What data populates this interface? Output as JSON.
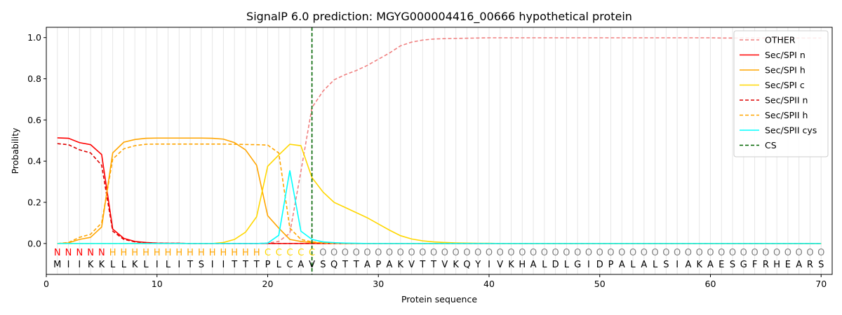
{
  "chart_data": {
    "type": "line",
    "title": "SignalP 6.0 prediction: MGYG000004416_00666 hypothetical protein",
    "xlabel": "Protein sequence",
    "ylabel": "Probability",
    "xlim": [
      0,
      71
    ],
    "ylim": [
      -0.15,
      1.05
    ],
    "x_ticks": [
      0,
      10,
      20,
      30,
      40,
      50,
      60,
      70
    ],
    "y_ticks": [
      0.0,
      0.2,
      0.4,
      0.6,
      0.8,
      1.0
    ],
    "y_tick_labels": [
      "0.0",
      "0.2",
      "0.4",
      "0.6",
      "0.8",
      "1.0"
    ],
    "legend_position": "top-right",
    "sequence": [
      "M",
      "I",
      "I",
      "K",
      "K",
      "L",
      "L",
      "K",
      "L",
      "I",
      "L",
      "I",
      "T",
      "S",
      "I",
      "I",
      "T",
      "T",
      "T",
      "P",
      "L",
      "C",
      "A",
      "V",
      "S",
      "Q",
      "T",
      "T",
      "A",
      "P",
      "A",
      "K",
      "V",
      "T",
      "T",
      "V",
      "K",
      "Q",
      "Y",
      "I",
      "V",
      "K",
      "H",
      "A",
      "L",
      "D",
      "L",
      "G",
      "I",
      "D",
      "P",
      "A",
      "L",
      "A",
      "L",
      "S",
      "I",
      "A",
      "K",
      "A",
      "E",
      "S",
      "G",
      "F",
      "R",
      "H",
      "E",
      "A",
      "R",
      "S"
    ],
    "region_labels": [
      "N",
      "N",
      "N",
      "N",
      "N",
      "H",
      "H",
      "H",
      "H",
      "H",
      "H",
      "H",
      "H",
      "H",
      "H",
      "H",
      "H",
      "H",
      "H",
      "C",
      "C",
      "C",
      "C",
      "C",
      "O",
      "O",
      "O",
      "O",
      "O",
      "O",
      "O",
      "O",
      "O",
      "O",
      "O",
      "O",
      "O",
      "O",
      "O",
      "O",
      "O",
      "O",
      "O",
      "O",
      "O",
      "O",
      "O",
      "O",
      "O",
      "O",
      "O",
      "O",
      "O",
      "O",
      "O",
      "O",
      "O",
      "O",
      "O",
      "O",
      "O",
      "O",
      "O",
      "O",
      "O",
      "O",
      "O",
      "O",
      "O",
      "O"
    ],
    "region_colors": {
      "N": "#ff0000",
      "H": "#ffa500",
      "C": "#ffd700",
      "O": "#808080"
    },
    "cs_position": 24,
    "series": [
      {
        "name": "OTHER",
        "color": "#f08080",
        "dash": "dashed",
        "values": [
          0,
          0,
          0,
          0,
          0,
          0,
          0,
          0,
          0,
          0,
          0,
          0,
          0,
          0,
          0,
          0,
          0,
          0,
          0,
          0.002,
          0.01,
          0.05,
          0.35,
          0.66,
          0.74,
          0.795,
          0.82,
          0.84,
          0.865,
          0.895,
          0.925,
          0.96,
          0.978,
          0.988,
          0.993,
          0.995,
          0.996,
          0.997,
          0.998,
          0.999,
          0.999,
          0.999,
          0.999,
          0.999,
          0.999,
          0.999,
          0.999,
          0.999,
          0.999,
          0.999,
          0.999,
          0.999,
          0.999,
          0.999,
          0.999,
          0.999,
          0.999,
          0.999,
          0.999,
          0.999,
          0.998,
          0.998,
          0.998,
          0.998,
          0.998,
          0.998,
          0.998,
          0.998,
          0.998,
          0.998
        ]
      },
      {
        "name": "Sec/SPI n",
        "color": "#ff0000",
        "dash": "solid",
        "values": [
          0.513,
          0.511,
          0.49,
          0.48,
          0.432,
          0.07,
          0.025,
          0.01,
          0.005,
          0.002,
          0.001,
          0.001,
          0,
          0,
          0,
          0,
          0,
          0,
          0,
          0,
          0,
          0,
          0,
          0,
          0,
          0,
          0,
          0,
          0,
          0,
          0,
          0,
          0,
          0,
          0,
          0,
          0,
          0,
          0,
          0,
          0,
          0,
          0,
          0,
          0,
          0,
          0,
          0,
          0,
          0,
          0,
          0,
          0,
          0,
          0,
          0,
          0,
          0,
          0,
          0,
          0,
          0,
          0,
          0,
          0,
          0,
          0,
          0,
          0,
          0
        ]
      },
      {
        "name": "Sec/SPI h",
        "color": "#ffa500",
        "dash": "solid",
        "values": [
          0,
          0.003,
          0.02,
          0.03,
          0.08,
          0.44,
          0.492,
          0.505,
          0.511,
          0.512,
          0.512,
          0.512,
          0.512,
          0.512,
          0.511,
          0.507,
          0.49,
          0.455,
          0.38,
          0.135,
          0.075,
          0.02,
          0.01,
          0.005,
          0.002,
          0.001,
          0,
          0,
          0,
          0,
          0,
          0,
          0,
          0,
          0,
          0,
          0,
          0,
          0,
          0,
          0,
          0,
          0,
          0,
          0,
          0,
          0,
          0,
          0,
          0,
          0,
          0,
          0,
          0,
          0,
          0,
          0,
          0,
          0,
          0,
          0,
          0,
          0,
          0,
          0,
          0,
          0,
          0,
          0,
          0
        ]
      },
      {
        "name": "Sec/SPI c",
        "color": "#ffd700",
        "dash": "solid",
        "values": [
          0,
          0,
          0,
          0,
          0,
          0,
          0,
          0,
          0,
          0,
          0,
          0,
          0,
          0,
          0,
          0.005,
          0.02,
          0.055,
          0.13,
          0.375,
          0.43,
          0.482,
          0.475,
          0.32,
          0.25,
          0.2,
          0.175,
          0.15,
          0.125,
          0.095,
          0.065,
          0.038,
          0.022,
          0.013,
          0.008,
          0.005,
          0.003,
          0.002,
          0.001,
          0.001,
          0,
          0,
          0,
          0,
          0,
          0,
          0,
          0,
          0,
          0,
          0,
          0,
          0,
          0,
          0,
          0,
          0,
          0,
          0,
          0,
          0,
          0,
          0,
          0,
          0,
          0,
          0,
          0,
          0,
          0
        ]
      },
      {
        "name": "Sec/SPII n",
        "color": "#dd0000",
        "dash": "dashed",
        "values": [
          0.485,
          0.48,
          0.455,
          0.44,
          0.38,
          0.06,
          0.02,
          0.008,
          0.004,
          0.002,
          0.001,
          0.001,
          0,
          0,
          0,
          0,
          0,
          0,
          0,
          0,
          0,
          0,
          0,
          0,
          0,
          0,
          0,
          0,
          0,
          0,
          0,
          0,
          0,
          0,
          0,
          0,
          0,
          0,
          0,
          0,
          0,
          0,
          0,
          0,
          0,
          0,
          0,
          0,
          0,
          0,
          0,
          0,
          0,
          0,
          0,
          0,
          0,
          0,
          0,
          0,
          0,
          0,
          0,
          0,
          0,
          0,
          0,
          0,
          0,
          0
        ]
      },
      {
        "name": "Sec/SPII h",
        "color": "#ffa500",
        "dash": "dashed",
        "values": [
          0,
          0.005,
          0.03,
          0.045,
          0.1,
          0.41,
          0.46,
          0.475,
          0.482,
          0.483,
          0.483,
          0.483,
          0.483,
          0.483,
          0.483,
          0.483,
          0.482,
          0.481,
          0.48,
          0.478,
          0.44,
          0.075,
          0.02,
          0.008,
          0.003,
          0.001,
          0,
          0,
          0,
          0,
          0,
          0,
          0,
          0,
          0,
          0,
          0,
          0,
          0,
          0,
          0,
          0,
          0,
          0,
          0,
          0,
          0,
          0,
          0,
          0,
          0,
          0,
          0,
          0,
          0,
          0,
          0,
          0,
          0,
          0,
          0,
          0,
          0,
          0,
          0,
          0,
          0,
          0,
          0,
          0
        ]
      },
      {
        "name": "Sec/SPII cys",
        "color": "#00ffff",
        "dash": "solid",
        "values": [
          0,
          0,
          0,
          0,
          0,
          0,
          0,
          0,
          0,
          0,
          0,
          0,
          0,
          0,
          0,
          0,
          0,
          0,
          0,
          0.002,
          0.04,
          0.355,
          0.06,
          0.02,
          0.008,
          0.004,
          0.002,
          0.001,
          0,
          0,
          0,
          0,
          0,
          0,
          0,
          0,
          0,
          0,
          0,
          0,
          0,
          0,
          0,
          0,
          0,
          0,
          0,
          0,
          0,
          0,
          0,
          0,
          0,
          0,
          0,
          0,
          0,
          0,
          0,
          0,
          0,
          0,
          0,
          0,
          0,
          0,
          0,
          0,
          0,
          0
        ]
      },
      {
        "name": "CS",
        "color": "#006400",
        "dash": "dashed",
        "values": []
      }
    ]
  }
}
